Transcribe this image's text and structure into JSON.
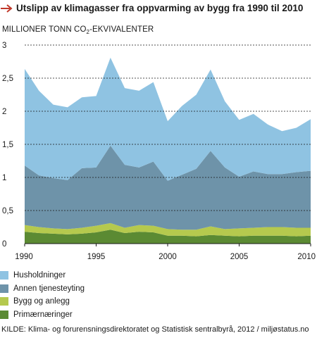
{
  "header": {
    "title": "Utslipp av klimagasser fra oppvarming av bygg fra 1990 til 2010",
    "arrow_color": "#c0392b"
  },
  "axis": {
    "ylabel_main": "MILLIONER TONN CO",
    "ylabel_sub": "2",
    "ylabel_rest": "-EKVIVALENTER"
  },
  "source": "KILDE: Klima- og forurensningsdirektoratet og Statistisk sentralbyrå, 2012 / miljøstatus.no",
  "chart_data": {
    "type": "area",
    "stacked": true,
    "title": "Utslipp av klimagasser fra oppvarming av bygg fra 1990 til 2010",
    "ylabel": "MILLIONER TONN CO2-EKVIVALENTER",
    "xlabel": "",
    "ylim": [
      0,
      3
    ],
    "yticks": [
      0,
      0.5,
      1,
      1.5,
      2,
      2.5,
      3
    ],
    "ytick_labels": [
      "0",
      "0,5",
      "1",
      "1,5",
      "2",
      "2,5",
      "3"
    ],
    "xticks": [
      1990,
      1995,
      2000,
      2005,
      2010
    ],
    "xtick_labels": [
      "1990",
      "1995",
      "2000",
      "2005",
      "2010"
    ],
    "grid": "horizontal-dashed",
    "legend_position": "bottom-left",
    "x": [
      1990,
      1991,
      1992,
      1993,
      1994,
      1995,
      1996,
      1997,
      1998,
      1999,
      2000,
      2001,
      2002,
      2003,
      2004,
      2005,
      2006,
      2007,
      2008,
      2009,
      2010
    ],
    "series": [
      {
        "name": "Primærnæringer",
        "color": "#5b8a33",
        "values": [
          0.18,
          0.16,
          0.15,
          0.14,
          0.15,
          0.17,
          0.21,
          0.16,
          0.18,
          0.17,
          0.12,
          0.12,
          0.11,
          0.13,
          0.12,
          0.11,
          0.12,
          0.12,
          0.12,
          0.11,
          0.12
        ]
      },
      {
        "name": "Bygg og anlegg",
        "color": "#b5c94e",
        "values": [
          0.1,
          0.09,
          0.08,
          0.08,
          0.09,
          0.1,
          0.1,
          0.08,
          0.1,
          0.1,
          0.1,
          0.09,
          0.1,
          0.13,
          0.1,
          0.12,
          0.12,
          0.13,
          0.13,
          0.13,
          0.12
        ]
      },
      {
        "name": "Annen tjenesteyting",
        "color": "#6e93a9",
        "values": [
          0.9,
          0.78,
          0.76,
          0.74,
          0.9,
          0.88,
          1.17,
          0.95,
          0.87,
          0.97,
          0.73,
          0.83,
          0.92,
          1.14,
          0.93,
          0.78,
          0.85,
          0.8,
          0.8,
          0.84,
          0.86
        ]
      },
      {
        "name": "Husholdninger",
        "color": "#8fc3e2",
        "values": [
          1.46,
          1.28,
          1.11,
          1.1,
          1.07,
          1.08,
          1.33,
          1.16,
          1.16,
          1.2,
          0.9,
          1.04,
          1.12,
          1.23,
          1.0,
          0.86,
          0.87,
          0.75,
          0.65,
          0.67,
          0.78
        ]
      }
    ]
  }
}
